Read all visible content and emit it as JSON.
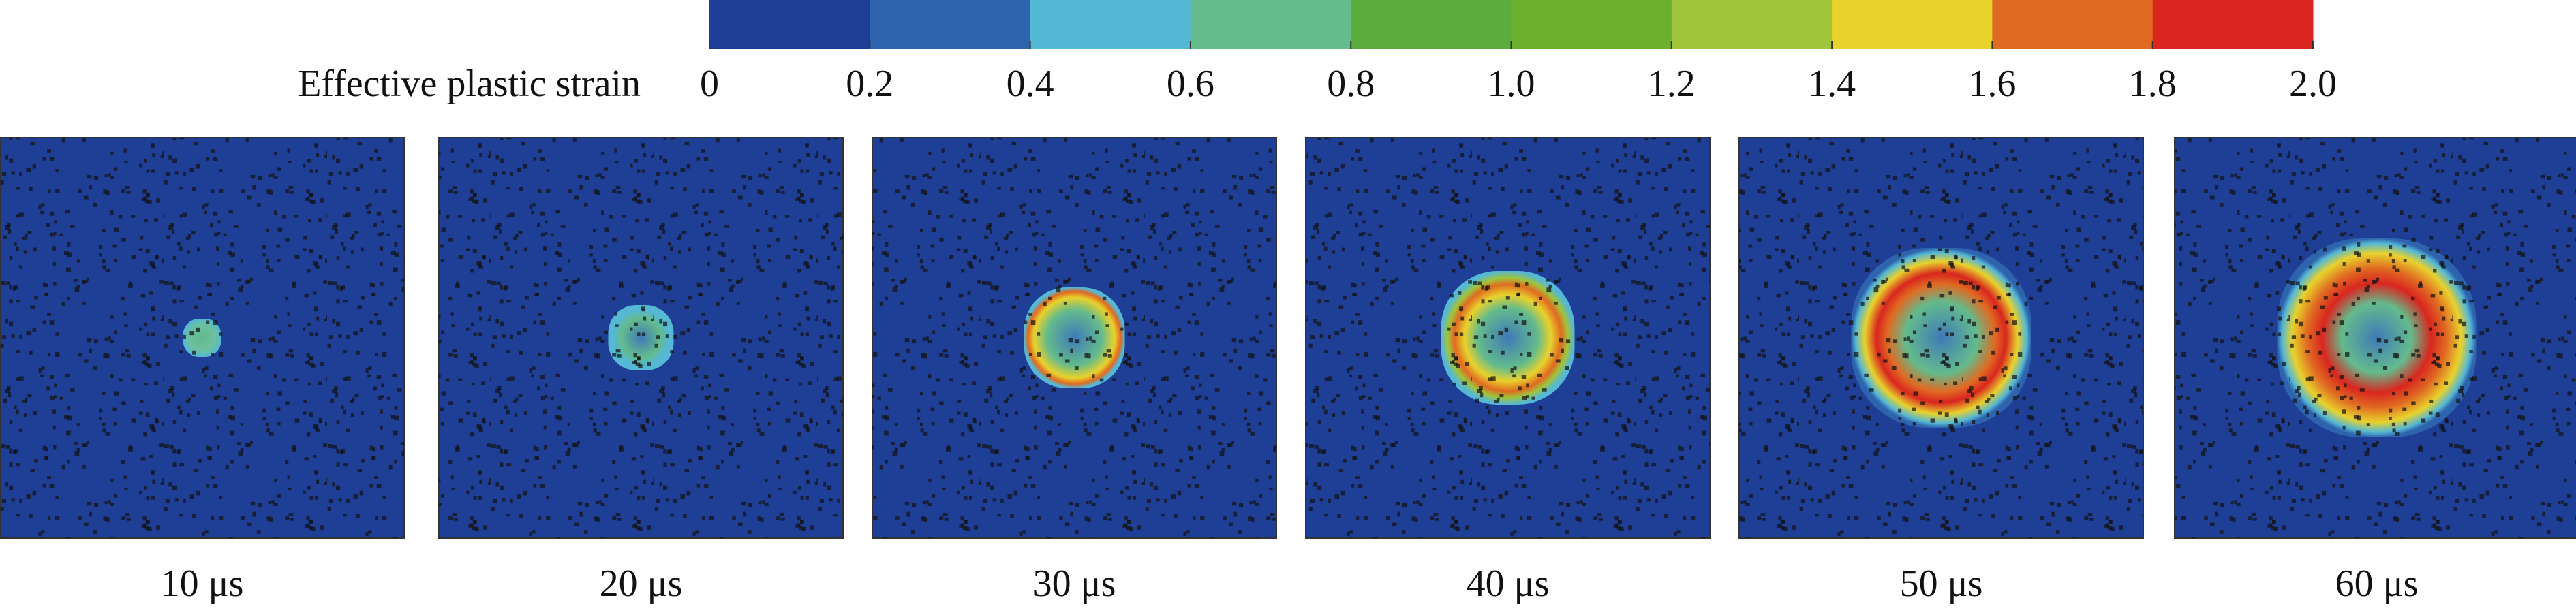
{
  "colorbar": {
    "label": "Effective plastic strain",
    "ticks": [
      "0",
      "0.2",
      "0.4",
      "0.6",
      "0.8",
      "1.0",
      "1.2",
      "1.4",
      "1.6",
      "1.8",
      "2.0"
    ],
    "colors": [
      "#1f3f96",
      "#2e64ae",
      "#55b8d4",
      "#64bb8c",
      "#5aad3c",
      "#6cb02e",
      "#a0c43a",
      "#e8d22c",
      "#e06a22",
      "#d9261f"
    ]
  },
  "panels": [
    {
      "label": "10 μs"
    },
    {
      "label": "20 μs"
    },
    {
      "label": "30 μs"
    },
    {
      "label": "40 μs"
    },
    {
      "label": "50 μs"
    },
    {
      "label": "60 μs"
    }
  ]
}
